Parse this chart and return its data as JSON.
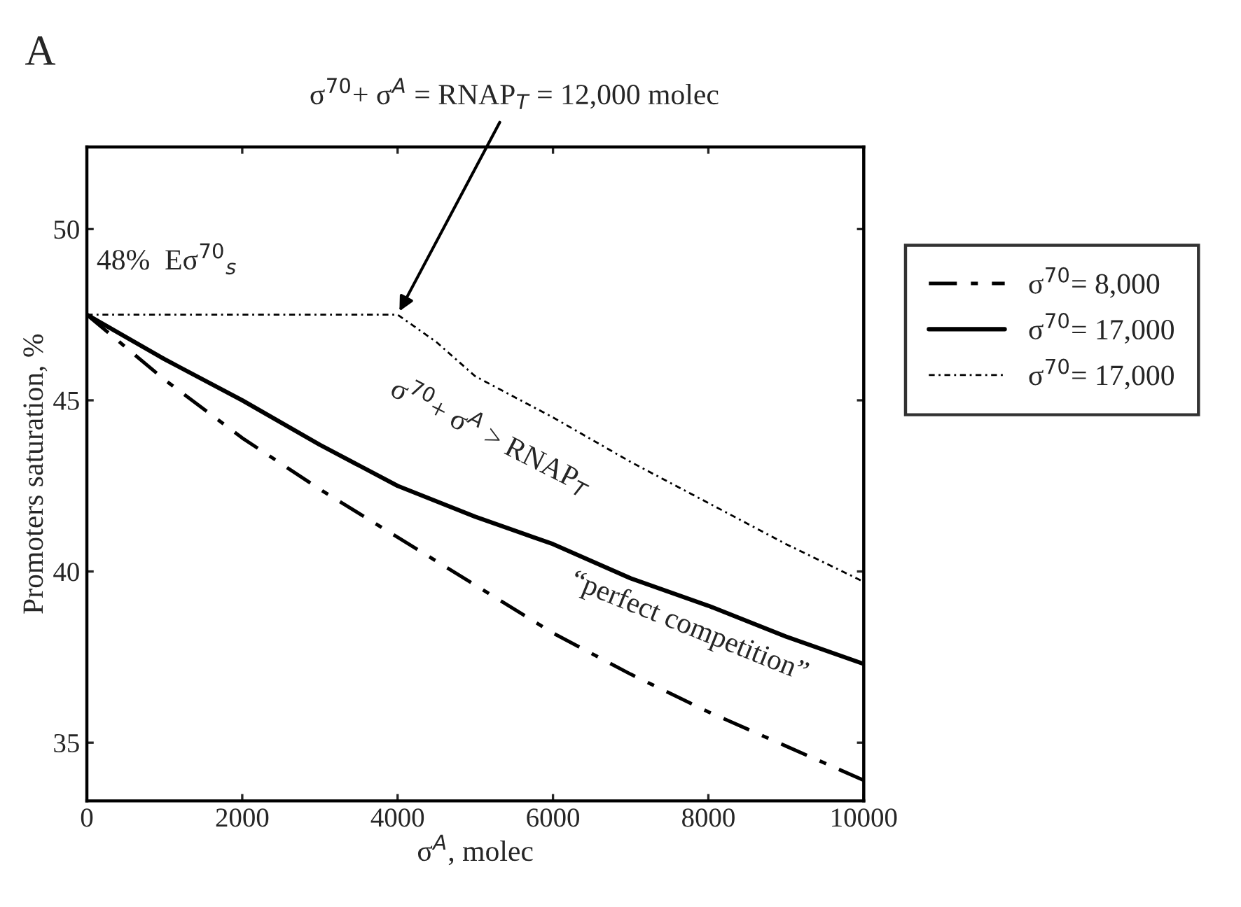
{
  "chart_data": {
    "type": "line",
    "title": "A",
    "xlabel": "σ$^{A}$, molec",
    "ylabel": "Promoters saturation, %",
    "xlim": [
      0,
      10000
    ],
    "xticks": [
      0,
      2000,
      4000,
      6000,
      8000,
      10000
    ],
    "ylim": [
      33.3,
      52.4
    ],
    "yticks": [
      35,
      40,
      45,
      50
    ],
    "grid": false,
    "legend": "right",
    "marker": "none",
    "series": [
      {
        "name": "σ$^{70}$= 8,000",
        "color": "#000000",
        "line_style": "dashed",
        "x": [
          0,
          1000,
          2000,
          3000,
          4000,
          5000,
          6000,
          7000,
          8000,
          9000,
          10000
        ],
        "values": [
          47.5,
          45.6,
          43.9,
          42.4,
          41.0,
          39.6,
          38.2,
          37.0,
          35.9,
          34.9,
          33.9
        ]
      },
      {
        "name": "σ$^{70}$= 17,000",
        "color": "#000000",
        "line_style": "solid",
        "x": [
          0,
          1000,
          2000,
          3000,
          4000,
          5000,
          6000,
          7000,
          8000,
          9000,
          10000
        ],
        "values": [
          47.5,
          46.2,
          45.0,
          43.7,
          42.5,
          41.6,
          40.8,
          39.8,
          39.0,
          38.1,
          37.3
        ]
      },
      {
        "name": "σ$^{70}$= 17,000",
        "color": "#000000",
        "line_style": "dotted",
        "x": [
          0,
          2000,
          4000,
          4500,
          5000,
          6000,
          7000,
          8000,
          9000,
          10000
        ],
        "values": [
          47.5,
          47.5,
          47.5,
          46.7,
          45.7,
          44.5,
          43.2,
          42.0,
          40.8,
          39.7
        ]
      }
    ],
    "annotations": [
      {
        "text": "σ$^{70}$+ σ$^{A}$ = RNAP$_{T}$ = 12,000 molec",
        "x": 4000,
        "y": 47.5
      },
      {
        "text": "48%  Eσ$^{70}$$_{s}$",
        "x": 0,
        "y": 47.5
      },
      {
        "text": "σ$^{70}$+ σ$^{A}$ > RNAP$_{T}$",
        "x": 5200,
        "y": 41.4
      },
      {
        "text": "“perfect competition”",
        "x": 7500,
        "y": 36.5
      }
    ]
  }
}
